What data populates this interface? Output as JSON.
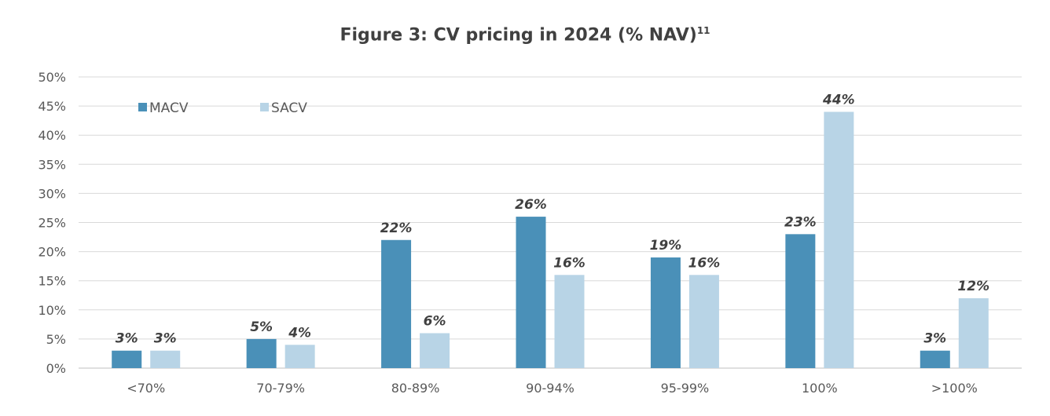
{
  "chart_data": {
    "type": "bar",
    "title": "Figure 3: CV pricing in 2024 (% NAV)",
    "title_footnote": "11",
    "categories": [
      "<70%",
      "70-79%",
      "80-89%",
      "90-94%",
      "95-99%",
      "100%",
      ">100%"
    ],
    "series": [
      {
        "name": "MACV",
        "color": "#4a90b8",
        "values": [
          3,
          5,
          22,
          26,
          19,
          23,
          3
        ]
      },
      {
        "name": "SACV",
        "color": "#b8d4e6",
        "values": [
          3,
          4,
          6,
          16,
          16,
          44,
          12
        ]
      }
    ],
    "ylim": [
      0,
      50
    ],
    "yticks": [
      0,
      5,
      10,
      15,
      20,
      25,
      30,
      35,
      40,
      45,
      50
    ],
    "ytick_suffix": "%",
    "label_suffix": "%",
    "grid": true,
    "legend_position": "top-left",
    "xlabel": "",
    "ylabel": ""
  }
}
